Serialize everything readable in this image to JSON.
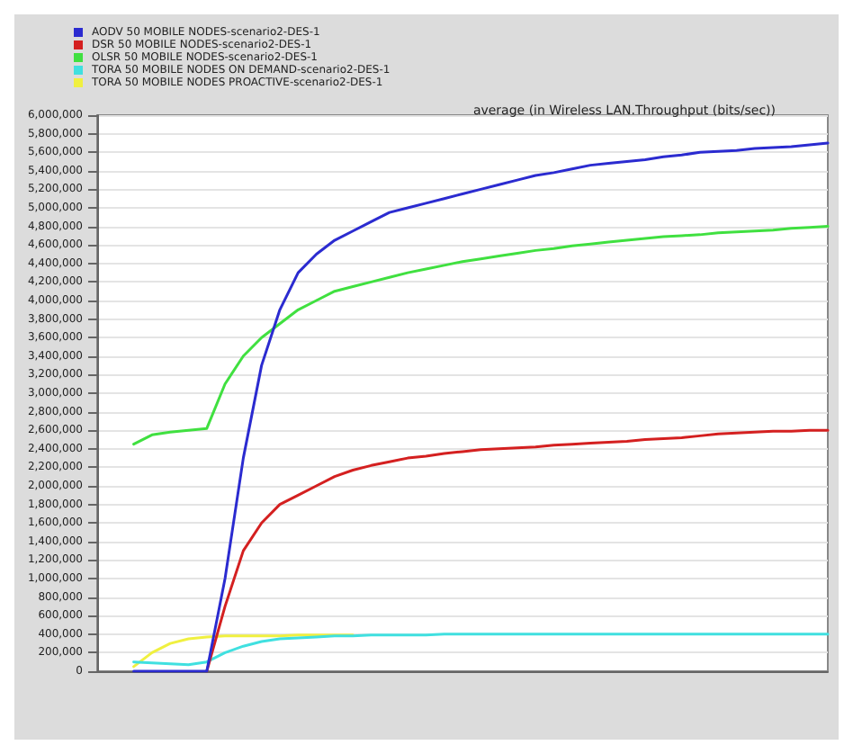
{
  "chart_data": {
    "type": "line",
    "title": "average (in Wireless LAN.Throughput (bits/sec))",
    "categories": [
      null,
      null,
      null,
      null,
      null,
      null,
      null,
      null,
      null,
      null,
      null,
      null,
      null,
      null,
      null,
      null,
      null,
      null,
      null,
      null,
      null,
      null,
      null,
      null,
      null,
      null,
      null,
      null,
      null,
      null,
      null,
      null,
      null,
      null,
      null,
      null,
      null,
      null,
      null,
      null,
      null
    ],
    "series": [
      {
        "name": "AODV 50 MOBILE NODES-scenario2-DES-1",
        "color": "#2b2bd0",
        "values": [
          null,
          null,
          0,
          0,
          0,
          0,
          0,
          1000000,
          2300000,
          3300000,
          3900000,
          4300000,
          4500000,
          4650000,
          4750000,
          4850000,
          4950000,
          5000000,
          5050000,
          5100000,
          5150000,
          5200000,
          5250000,
          5300000,
          5350000,
          5380000,
          5420000,
          5460000,
          5480000,
          5500000,
          5520000,
          5550000,
          5570000,
          5600000,
          5610000,
          5620000,
          5640000,
          5650000,
          5660000,
          5680000,
          5700000
        ]
      },
      {
        "name": "DSR 50 MOBILE NODES-scenario2-DES-1",
        "color": "#d42020",
        "values": [
          null,
          null,
          null,
          null,
          null,
          null,
          0,
          700000,
          1300000,
          1600000,
          1800000,
          1900000,
          2000000,
          2100000,
          2170000,
          2220000,
          2260000,
          2300000,
          2320000,
          2350000,
          2370000,
          2390000,
          2400000,
          2410000,
          2420000,
          2440000,
          2450000,
          2460000,
          2470000,
          2480000,
          2500000,
          2510000,
          2520000,
          2540000,
          2560000,
          2570000,
          2580000,
          2590000,
          2590000,
          2600000,
          2600000
        ]
      },
      {
        "name": "OLSR 50 MOBILE NODES-scenario2-DES-1",
        "color": "#40e040",
        "values": [
          null,
          null,
          2450000,
          2550000,
          2580000,
          2600000,
          2620000,
          3100000,
          3400000,
          3600000,
          3750000,
          3900000,
          4000000,
          4100000,
          4150000,
          4200000,
          4250000,
          4300000,
          4340000,
          4380000,
          4420000,
          4450000,
          4480000,
          4510000,
          4540000,
          4560000,
          4590000,
          4610000,
          4630000,
          4650000,
          4670000,
          4690000,
          4700000,
          4710000,
          4730000,
          4740000,
          4750000,
          4760000,
          4780000,
          4790000,
          4800000
        ]
      },
      {
        "name": "TORA 50 MOBILE NODES ON DEMAND-scenario2-DES-1",
        "color": "#40e0e0",
        "values": [
          null,
          null,
          100000,
          90000,
          80000,
          70000,
          100000,
          200000,
          270000,
          320000,
          350000,
          360000,
          370000,
          380000,
          380000,
          390000,
          390000,
          390000,
          390000,
          400000,
          400000,
          400000,
          400000,
          400000,
          400000,
          400000,
          400000,
          400000,
          400000,
          400000,
          400000,
          400000,
          400000,
          400000,
          400000,
          400000,
          400000,
          400000,
          400000,
          400000,
          400000
        ]
      },
      {
        "name": "TORA 50 MOBILE NODES PROACTIVE-scenario2-DES-1",
        "color": "#f0f040",
        "values": [
          null,
          null,
          50000,
          200000,
          300000,
          350000,
          370000,
          380000,
          380000,
          380000,
          380000,
          390000,
          390000,
          390000,
          390000,
          null,
          null,
          null,
          null,
          null,
          null,
          null,
          null,
          null,
          null,
          null,
          null,
          null,
          null,
          null,
          null,
          null,
          null,
          null,
          null,
          null,
          null,
          null,
          null,
          null,
          null
        ]
      }
    ],
    "ylim": [
      0,
      6000000
    ],
    "yticks": [
      {
        "value": 0,
        "label": "0"
      },
      {
        "value": 200000,
        "label": "200,000"
      },
      {
        "value": 400000,
        "label": "400,000"
      },
      {
        "value": 600000,
        "label": "600,000"
      },
      {
        "value": 800000,
        "label": "800,000"
      },
      {
        "value": 1000000,
        "label": "1,000,000"
      },
      {
        "value": 1200000,
        "label": "1,200,000"
      },
      {
        "value": 1400000,
        "label": "1,400,000"
      },
      {
        "value": 1600000,
        "label": "1,600,000"
      },
      {
        "value": 1800000,
        "label": "1,800,000"
      },
      {
        "value": 2000000,
        "label": "2,000,000"
      },
      {
        "value": 2200000,
        "label": "2,200,000"
      },
      {
        "value": 2400000,
        "label": "2,400,000"
      },
      {
        "value": 2600000,
        "label": "2,600,000"
      },
      {
        "value": 2800000,
        "label": "2,800,000"
      },
      {
        "value": 3000000,
        "label": "3,000,000"
      },
      {
        "value": 3200000,
        "label": "3,200,000"
      },
      {
        "value": 3400000,
        "label": "3,400,000"
      },
      {
        "value": 3600000,
        "label": "3,600,000"
      },
      {
        "value": 3800000,
        "label": "3,800,000"
      },
      {
        "value": 4000000,
        "label": "4,000,000"
      },
      {
        "value": 4200000,
        "label": "4,200,000"
      },
      {
        "value": 4400000,
        "label": "4,400,000"
      },
      {
        "value": 4600000,
        "label": "4,600,000"
      },
      {
        "value": 4800000,
        "label": "4,800,000"
      },
      {
        "value": 5000000,
        "label": "5,000,000"
      },
      {
        "value": 5200000,
        "label": "5,200,000"
      },
      {
        "value": 5400000,
        "label": "5,400,000"
      },
      {
        "value": 5600000,
        "label": "5,600,000"
      },
      {
        "value": 5800000,
        "label": "5,800,000"
      },
      {
        "value": 6000000,
        "label": "6,000,000"
      }
    ],
    "grid": "y",
    "legend": "top left",
    "tick_labels": "y",
    "marker": "none",
    "line_style": "solid"
  }
}
